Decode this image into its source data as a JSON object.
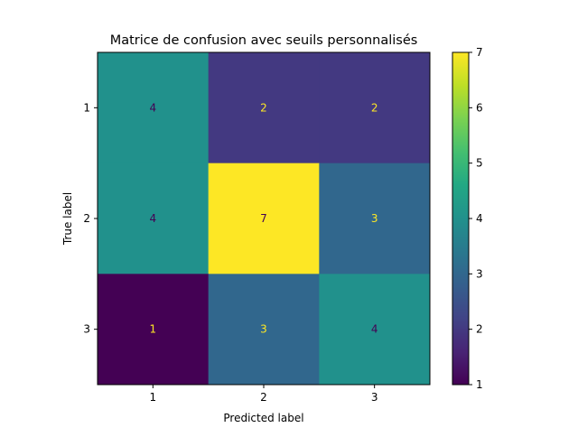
{
  "chart_data": {
    "type": "heatmap",
    "title": "Matrice de confusion avec seuils personnalisés",
    "xlabel": "Predicted label",
    "ylabel": "True label",
    "x_categories": [
      "1",
      "2",
      "3"
    ],
    "y_categories": [
      "1",
      "2",
      "3"
    ],
    "matrix": [
      [
        4,
        2,
        2
      ],
      [
        4,
        7,
        3
      ],
      [
        1,
        3,
        4
      ]
    ],
    "colormap": "viridis",
    "colorbar": {
      "range": [
        1,
        7
      ],
      "ticks": [
        "1",
        "2",
        "3",
        "4",
        "5",
        "6",
        "7"
      ]
    },
    "text_colors": {
      "on_dark": "#fde725",
      "on_light": "#440154"
    },
    "grid": false
  }
}
